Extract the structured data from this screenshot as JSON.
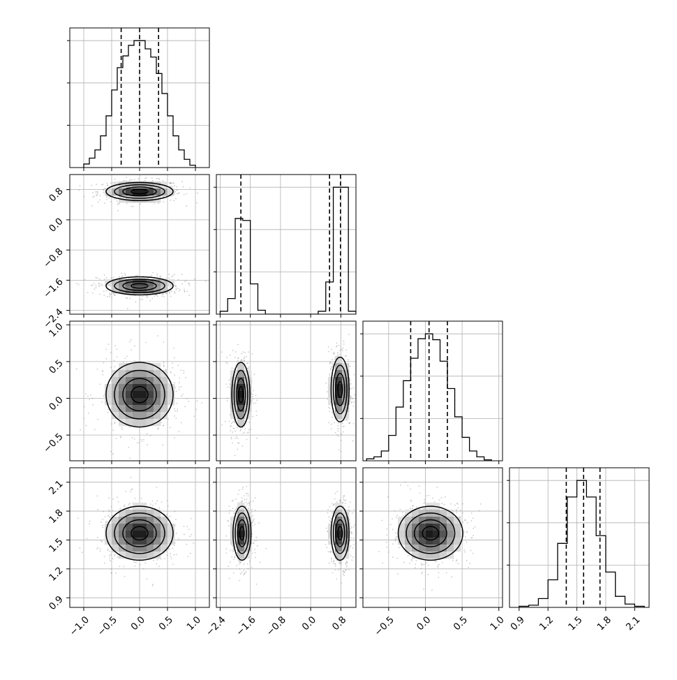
{
  "chart_data": {
    "type": "corner",
    "parameters": [
      {
        "range": [
          -1.25,
          1.25
        ],
        "ticks": [
          -1.0,
          -0.5,
          0.0,
          0.5,
          1.0
        ],
        "tick_labels": [
          "−1.0",
          "−0.5",
          "0.0",
          "0.5",
          "1.0"
        ],
        "quantiles": [
          -0.33,
          0.0,
          0.34
        ]
      },
      {
        "range": [
          -2.5,
          1.2
        ],
        "ticks": [
          -2.4,
          -1.6,
          -0.8,
          0.0,
          0.8
        ],
        "tick_labels": [
          "−2.4",
          "−1.6",
          "−0.8",
          "0.0",
          "0.8"
        ],
        "quantiles": [
          -1.85,
          0.5,
          0.79
        ]
      },
      {
        "range": [
          -0.85,
          1.05
        ],
        "ticks": [
          -0.5,
          0.0,
          0.5,
          1.0
        ],
        "tick_labels": [
          "−0.5",
          "0.0",
          "0.5",
          "1.0"
        ],
        "quantiles": [
          -0.2,
          0.05,
          0.3
        ]
      },
      {
        "range": [
          0.8,
          2.25
        ],
        "ticks": [
          0.9,
          1.2,
          1.5,
          1.8,
          2.1
        ],
        "tick_labels": [
          "0.9",
          "1.2",
          "1.5",
          "1.8",
          "2.1"
        ],
        "quantiles": [
          1.39,
          1.57,
          1.74
        ]
      }
    ],
    "histograms": [
      {
        "edges": [
          -1.0,
          -0.9,
          -0.8,
          -0.7,
          -0.6,
          -0.5,
          -0.4,
          -0.3,
          -0.2,
          -0.1,
          0.0,
          0.1,
          0.2,
          0.3,
          0.4,
          0.5,
          0.6,
          0.7,
          0.8,
          0.9,
          1.0
        ],
        "counts": [
          3,
          8,
          15,
          27,
          44,
          66,
          85,
          95,
          104,
          108,
          108,
          101,
          94,
          80,
          63,
          44,
          27,
          15,
          7,
          2
        ]
      },
      {
        "edges": [
          -2.4,
          -2.2,
          -2.0,
          -1.8,
          -1.6,
          -1.4,
          -1.2,
          0.2,
          0.4,
          0.6,
          0.8,
          1.0,
          1.2
        ],
        "counts": [
          3,
          16,
          98,
          96,
          31,
          4,
          0,
          3,
          33,
          130,
          130,
          3
        ]
      },
      {
        "edges": [
          -0.8,
          -0.7,
          -0.6,
          -0.5,
          -0.4,
          -0.3,
          -0.2,
          -0.1,
          0.0,
          0.1,
          0.2,
          0.3,
          0.4,
          0.5,
          0.6,
          0.7,
          0.8,
          0.9
        ],
        "counts": [
          2,
          4,
          10,
          26,
          55,
          82,
          105,
          125,
          130,
          124,
          102,
          74,
          45,
          24,
          10,
          4,
          1
        ]
      },
      {
        "edges": [
          0.9,
          1.0,
          1.1,
          1.2,
          1.3,
          1.4,
          1.5,
          1.6,
          1.7,
          1.8,
          1.9,
          2.0,
          2.1,
          2.2
        ],
        "counts": [
          1,
          2,
          8,
          25,
          58,
          100,
          115,
          100,
          65,
          32,
          10,
          3,
          1
        ]
      }
    ],
    "pairs": [
      {
        "row": 1,
        "col": 0,
        "modes": [
          {
            "cx": 0.0,
            "cy": 0.75,
            "sx": 0.3,
            "sy": 0.12
          },
          {
            "cx": 0.0,
            "cy": -1.75,
            "sx": 0.3,
            "sy": 0.12
          }
        ]
      },
      {
        "row": 2,
        "col": 0,
        "modes": [
          {
            "cx": 0.0,
            "cy": 0.05,
            "sx": 0.3,
            "sy": 0.22
          }
        ]
      },
      {
        "row": 2,
        "col": 1,
        "modes": [
          {
            "cx": -1.85,
            "cy": 0.05,
            "sx": 0.12,
            "sy": 0.22
          },
          {
            "cx": 0.78,
            "cy": 0.12,
            "sx": 0.12,
            "sy": 0.22
          }
        ]
      },
      {
        "row": 3,
        "col": 0,
        "modes": [
          {
            "cx": 0.0,
            "cy": 1.57,
            "sx": 0.3,
            "sy": 0.14
          }
        ]
      },
      {
        "row": 3,
        "col": 1,
        "modes": [
          {
            "cx": -1.82,
            "cy": 1.57,
            "sx": 0.12,
            "sy": 0.14
          },
          {
            "cx": 0.78,
            "cy": 1.57,
            "sx": 0.12,
            "sy": 0.14
          }
        ]
      },
      {
        "row": 3,
        "col": 2,
        "modes": [
          {
            "cx": 0.07,
            "cy": 1.57,
            "sx": 0.22,
            "sy": 0.14
          }
        ]
      }
    ],
    "contour_sigmas": [
      0.5,
      1.0,
      1.5,
      2.0
    ],
    "grid": true
  }
}
